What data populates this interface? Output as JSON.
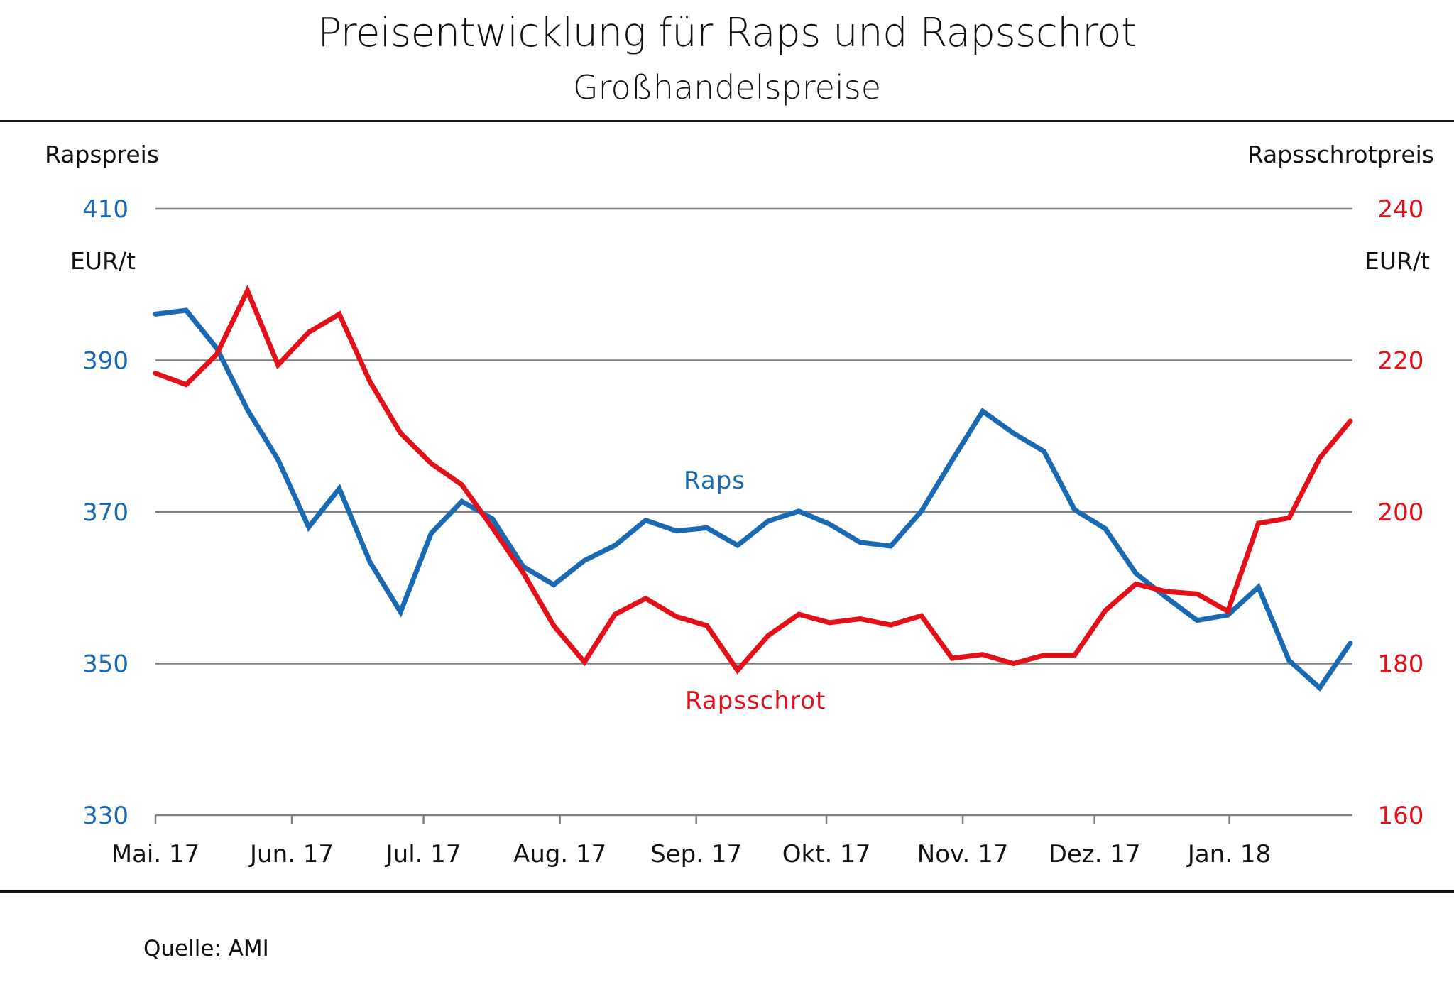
{
  "header": {
    "title": "Preisentwicklung für Raps und Rapsschrot",
    "subtitle": "Großhandelspreise"
  },
  "footer": {
    "source": "Quelle: AMI"
  },
  "chart_data": {
    "type": "line",
    "title": "Preisentwicklung für Raps und Rapsschrot",
    "subtitle": "Großhandelspreise",
    "xlabel": "",
    "x_tick_labels": [
      "Mai. 17",
      "Jun. 17",
      "Jul. 17",
      "Aug. 17",
      "Sep. 17",
      "Okt. 17",
      "Nov. 17",
      "Dez. 17",
      "Jan. 18"
    ],
    "x_tick_indices": [
      0,
      4.45,
      8.75,
      13.2,
      17.65,
      21.9,
      26.35,
      30.65,
      35.05
    ],
    "n_points": 40,
    "y_left": {
      "label": "Rapspreis",
      "unit": "EUR/t",
      "range": [
        330,
        410
      ],
      "ticks": [
        410,
        390,
        370,
        350,
        330
      ],
      "color": "#1a6ab3"
    },
    "y_right": {
      "label": "Rapsschrotpreis",
      "unit": "EUR/t",
      "range": [
        160,
        240
      ],
      "ticks": [
        240,
        220,
        200,
        180,
        160
      ],
      "color": "#e3101a"
    },
    "grid": true,
    "series": [
      {
        "name": "Raps",
        "axis": "left",
        "color": "#1a6ab3",
        "values": [
          396.1,
          396.6,
          391.6,
          383.5,
          376.9,
          368.0,
          373.1,
          363.4,
          356.8,
          367.2,
          371.4,
          369.1,
          362.8,
          360.4,
          363.6,
          365.6,
          368.9,
          367.5,
          367.9,
          365.6,
          368.8,
          370.1,
          368.4,
          366.0,
          365.5,
          370.1,
          376.8,
          383.3,
          380.4,
          378.0,
          370.3,
          367.8,
          361.9,
          358.7,
          355.7,
          356.4,
          360.1,
          350.4,
          346.8,
          352.7
        ]
      },
      {
        "name": "Rapsschrot",
        "axis": "right",
        "color": "#e3101a",
        "values": [
          218.3,
          216.8,
          220.8,
          229.2,
          219.4,
          223.7,
          226.1,
          217.2,
          210.4,
          206.4,
          203.6,
          197.9,
          192.0,
          185.0,
          180.2,
          186.5,
          188.6,
          186.2,
          185.0,
          179.1,
          183.7,
          186.5,
          185.4,
          185.9,
          185.1,
          186.3,
          180.7,
          181.2,
          180.0,
          181.1,
          181.1,
          187.0,
          190.5,
          189.5,
          189.2,
          186.9,
          198.5,
          199.2,
          207.1,
          212.0
        ]
      }
    ],
    "annotations": [
      {
        "text": "Raps",
        "series": "Raps"
      },
      {
        "text": "Rapsschrot",
        "series": "Rapsschrot"
      }
    ]
  }
}
